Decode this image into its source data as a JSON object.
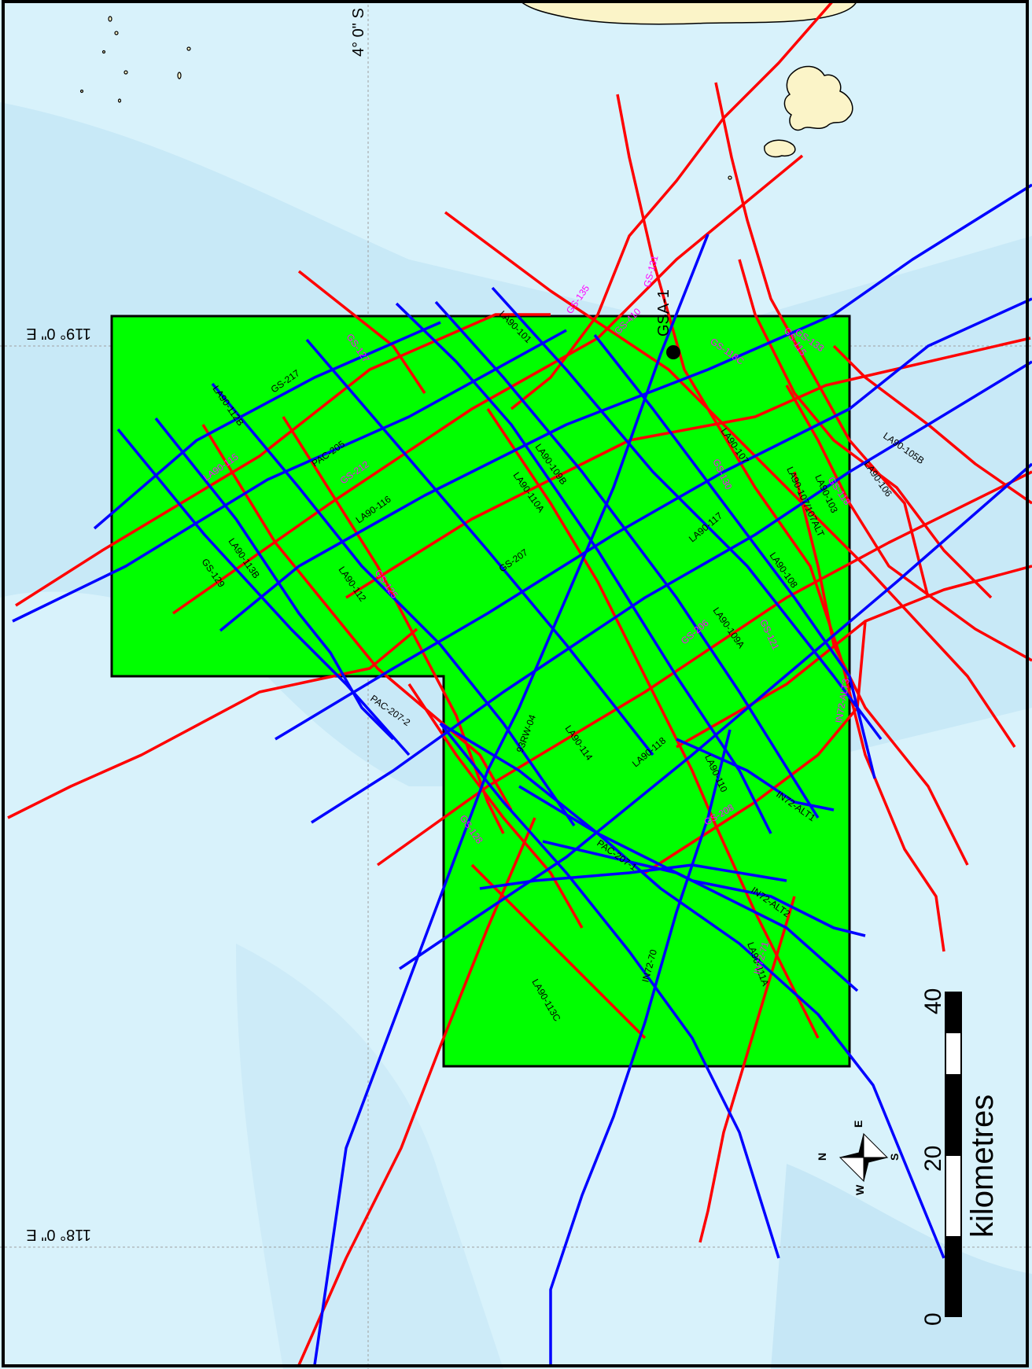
{
  "map": {
    "coord_labels": {
      "lat_4S": "4° 0\" S",
      "lon_119E": "119° 0\" E",
      "lon_118E": "118° 0\" E"
    },
    "well": {
      "name": "GSA-1",
      "color": "#000000"
    },
    "scale": {
      "unit": "kilometres",
      "ticks": [
        "0",
        "20",
        "40"
      ]
    },
    "compass": {
      "n": "N",
      "e": "E",
      "s": "S",
      "w": "W"
    },
    "colors": {
      "sea_light": "#d8f2fb",
      "sea_mid": "#c4e6f6",
      "land": "#fbf4c8",
      "block": "#00ff00",
      "line_red": "#ff0000",
      "line_blue": "#0000ff",
      "label_magenta": "#ff00ff"
    },
    "line_labels": {
      "gs217": "GS-217",
      "pac205": "PAC-205",
      "la90116": "LA90-116",
      "gs207": "GS-207",
      "la9011b": "LA90-112B",
      "la90113b": "LA90-113B",
      "gs129": "GS-129",
      "la90112": "LA90-112",
      "la90110a": "LA90-110A",
      "la90109b": "LA90-109B",
      "la90101": "LA90-101",
      "la90117": "LA90-117",
      "la90108": "LA90-108",
      "la90109a": "LA90-109A",
      "la90118": "LA90-118",
      "la90114": "LA90-114",
      "rw04": "93RW-04",
      "pac2072": "PAC-207-2",
      "pac2071": "PAC-207-1",
      "in72alt1": "IN72-ALT1",
      "in72alt2": "IN72-ALT2",
      "in7270": "IN72-70",
      "la90111a": "LA90-111A",
      "la90113c": "LA90-113C",
      "la90107": "LA90-107",
      "la90106": "LA90-106",
      "la90105b": "LA90-105B",
      "la90110": "LA90-110",
      "la90107alt": "LA90-107/107ALT",
      "gs212": "GS-212",
      "gs125": "GS-125",
      "la90115": "LA90-115",
      "gs135": "GS-135",
      "gs131": "GS-131",
      "gs130": "GS-130",
      "gs118c": "GS-118C",
      "gs118": "GS-118",
      "gs133": "GS-133",
      "gs121": "GS-121",
      "gs206": "GS-206",
      "gs208": "GS-208",
      "gs128": "GS-128",
      "gs410": "GS-410",
      "gs115": "GS-115",
      "in7271": "IN72-71",
      "in72alt3": "IN72-ALT3",
      "la90103": "LA90-103",
      "gs127": "GS-127"
    }
  }
}
